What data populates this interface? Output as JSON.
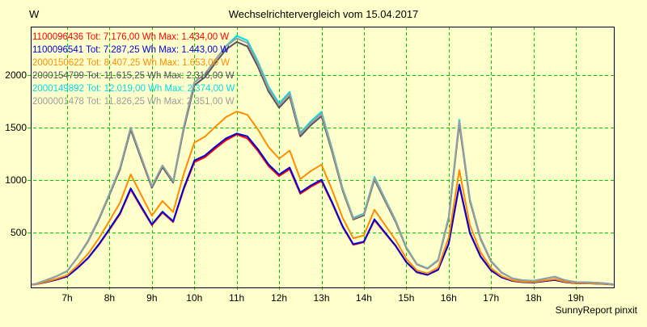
{
  "window": {
    "background": "#ffffcc"
  },
  "header": {
    "title": "Wechselrichtervergleich vom 15.04.2017"
  },
  "footer": {
    "credit": "SunnyReport pinxit"
  },
  "chart_data": {
    "type": "line",
    "title": "Wechselrichtervergleich vom 15.04.2017",
    "xlabel": "",
    "ylabel": "W",
    "y_unit_label": "W",
    "grid": true,
    "grid_color": "#00cc00",
    "background_color": "#ffffcc",
    "axis_color": "#000000",
    "legend_position": "top-left",
    "ylim": [
      0,
      2460
    ],
    "xlim_hours": [
      6.14,
      19.92
    ],
    "y_ticks": [
      500,
      1000,
      1500,
      2000
    ],
    "x_tick_hours": [
      7,
      8,
      9,
      10,
      11,
      12,
      13,
      14,
      15,
      16,
      17,
      18,
      19
    ],
    "x_tick_labels": [
      "7h",
      "8h",
      "9h",
      "10h",
      "11h",
      "12h",
      "13h",
      "14h",
      "15h",
      "16h",
      "17h",
      "18h",
      "19h"
    ],
    "x_hours": [
      6,
      6.25,
      6.5,
      6.75,
      7,
      7.25,
      7.5,
      7.75,
      8,
      8.25,
      8.5,
      8.75,
      9,
      9.25,
      9.5,
      9.75,
      10,
      10.25,
      10.5,
      10.75,
      11,
      11.25,
      11.5,
      11.75,
      12,
      12.25,
      12.5,
      12.75,
      13,
      13.25,
      13.5,
      13.75,
      14,
      14.25,
      14.5,
      14.75,
      15,
      15.25,
      15.5,
      15.75,
      16,
      16.25,
      16.5,
      16.75,
      17,
      17.25,
      17.5,
      17.75,
      18,
      18.25,
      18.5,
      18.75,
      19,
      19.25,
      19.5,
      19.75,
      20
    ],
    "series": [
      {
        "name": "1100096436",
        "label": "1100096436 Tot: 7.176,00 Wh Max: 1.434,00 W",
        "total_wh": "7.176,00",
        "max_w": "1.434,00",
        "color": "#ff0000",
        "values": [
          0,
          6,
          27,
          51,
          81,
          162,
          258,
          384,
          528,
          678,
          909,
          738,
          570,
          690,
          600,
          912,
          1170,
          1218,
          1302,
          1380,
          1434,
          1398,
          1278,
          1134,
          1038,
          1104,
          870,
          936,
          990,
          780,
          552,
          384,
          408,
          618,
          492,
          369,
          216,
          120,
          96,
          144,
          390,
          945,
          492,
          270,
          138,
          72,
          39,
          27,
          24,
          36,
          48,
          27,
          17,
          16,
          13,
          8,
          0
        ]
      },
      {
        "name": "1100096541",
        "label": "1100096541 Tot: 7.287,25 Wh Max: 1.443,00 W",
        "total_wh": "7.287,25",
        "max_w": "1.443,00",
        "color": "#0000dd",
        "values": [
          0,
          6,
          27,
          52,
          82,
          164,
          261,
          389,
          535,
          687,
          921,
          748,
          578,
          699,
          608,
          924,
          1186,
          1234,
          1319,
          1398,
          1443,
          1417,
          1295,
          1149,
          1052,
          1119,
          882,
          949,
          1003,
          790,
          559,
          389,
          413,
          626,
          499,
          374,
          219,
          122,
          97,
          146,
          395,
          958,
          499,
          274,
          140,
          73,
          40,
          27,
          24,
          36,
          49,
          27,
          17,
          16,
          13,
          9,
          0
        ]
      },
      {
        "name": "2000150622",
        "label": "2000150622 Tot: 8.407,25 Wh Max: 1.653,00 W",
        "total_wh": "8.407,25",
        "max_w": "1.653,00",
        "color": "#ff8c00",
        "values": [
          0,
          7,
          31,
          59,
          94,
          188,
          299,
          445,
          612,
          786,
          1054,
          856,
          661,
          800,
          696,
          1058,
          1357,
          1413,
          1510,
          1601,
          1653,
          1622,
          1482,
          1315,
          1204,
          1281,
          1009,
          1086,
          1148,
          905,
          640,
          445,
          473,
          717,
          571,
          428,
          251,
          139,
          111,
          167,
          452,
          1096,
          571,
          313,
          160,
          84,
          45,
          31,
          28,
          42,
          56,
          31,
          19,
          18,
          15,
          10,
          0
        ]
      },
      {
        "name": "2000154799",
        "label": "2000154799 Tot: 11.615,25 Wh Max: 2.316,00 W",
        "total_wh": "11.615,25",
        "max_w": "2.316,00",
        "color": "#55505a",
        "values": [
          0,
          10,
          44,
          83,
          132,
          264,
          420,
          625,
          859,
          1103,
          1479,
          1200,
          927,
          1122,
          976,
          1484,
          1903,
          1981,
          2118,
          2245,
          2316,
          2274,
          2079,
          1845,
          1689,
          1796,
          1415,
          1523,
          1610,
          1269,
          898,
          625,
          664,
          1005,
          800,
          600,
          351,
          195,
          156,
          234,
          634,
          1537,
          800,
          439,
          224,
          117,
          63,
          44,
          39,
          59,
          78,
          44,
          27,
          25,
          21,
          14,
          0
        ]
      },
      {
        "name": "2000149892",
        "label": "2000149892 Tot: 12.019,00 Wh Max: 2.374,00 W",
        "total_wh": "12.019,00",
        "max_w": "2.374,00",
        "color": "#00dcec",
        "values": [
          0,
          10,
          45,
          84,
          134,
          267,
          426,
          634,
          871,
          1119,
          1500,
          1218,
          941,
          1139,
          990,
          1505,
          1931,
          2010,
          2148,
          2277,
          2374,
          2330,
          2130,
          1890,
          1730,
          1840,
          1450,
          1560,
          1650,
          1300,
          920,
          640,
          680,
          1030,
          820,
          615,
          360,
          200,
          160,
          240,
          650,
          1575,
          820,
          450,
          230,
          120,
          65,
          45,
          40,
          60,
          80,
          45,
          28,
          26,
          22,
          14,
          0
        ]
      },
      {
        "name": "2000001478",
        "label": "2000001478 Tot: 11.826,25 Wh Max: 2.351,00 W",
        "total_wh": "11.826,25",
        "max_w": "2.351,00",
        "color": "#9c9c9c",
        "values": [
          0,
          10,
          45,
          84,
          134,
          267,
          426,
          634,
          871,
          1119,
          1500,
          1218,
          941,
          1139,
          990,
          1505,
          1931,
          2010,
          2148,
          2277,
          2351,
          2307,
          2109,
          1871,
          1713,
          1822,
          1436,
          1544,
          1634,
          1287,
          911,
          634,
          673,
          1020,
          812,
          609,
          356,
          198,
          158,
          238,
          644,
          1559,
          812,
          446,
          228,
          119,
          64,
          45,
          40,
          59,
          79,
          45,
          28,
          26,
          22,
          14,
          0
        ]
      }
    ]
  }
}
